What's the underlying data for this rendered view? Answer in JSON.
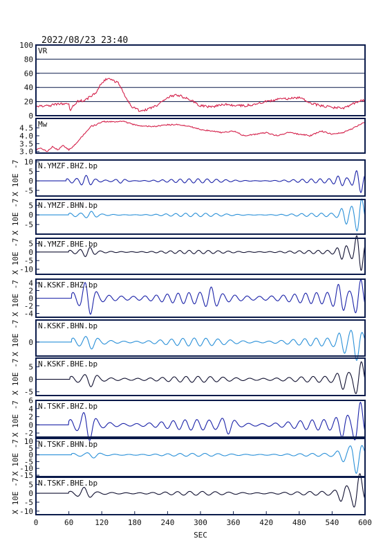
{
  "header": {
    "timestamp": "2022/08/23 23:40"
  },
  "x_axis": {
    "label": "SEC",
    "range": [
      0,
      600
    ],
    "ticks": [
      0,
      60,
      120,
      180,
      240,
      300,
      360,
      420,
      480,
      540,
      600
    ]
  },
  "colors": {
    "frame": "#0a1a4a",
    "vr_mw": "#d4204a",
    "bhz": "#1a22a8",
    "bhn": "#2a90d8",
    "bhe": "#101030"
  },
  "chart_data": [
    {
      "type": "line",
      "name": "VR",
      "label": "VR",
      "ylim": [
        0,
        100
      ],
      "yticks": [
        0,
        20,
        40,
        60,
        80,
        100
      ],
      "grid": true,
      "color": "#d4204a",
      "x": [
        0,
        20,
        40,
        60,
        62,
        75,
        90,
        100,
        110,
        120,
        130,
        140,
        150,
        165,
        175,
        190,
        200,
        215,
        230,
        245,
        260,
        280,
        300,
        320,
        330,
        345,
        360,
        380,
        400,
        420,
        440,
        460,
        480,
        500,
        520,
        540,
        560,
        580,
        600
      ],
      "values": [
        13,
        14,
        16,
        18,
        8,
        20,
        22,
        28,
        32,
        47,
        52,
        50,
        46,
        25,
        12,
        7,
        8,
        12,
        20,
        28,
        29,
        23,
        14,
        12,
        14,
        16,
        15,
        14,
        16,
        20,
        23,
        24,
        26,
        18,
        14,
        12,
        10,
        18,
        22
      ]
    },
    {
      "type": "line",
      "name": "Mw",
      "label": "Mw",
      "ylim": [
        2.9,
        5.1
      ],
      "yticks": [
        3.0,
        3.5,
        4.0,
        4.5
      ],
      "grid": false,
      "color": "#d4204a",
      "x": [
        0,
        10,
        20,
        30,
        40,
        50,
        60,
        70,
        80,
        90,
        100,
        110,
        120,
        140,
        160,
        180,
        200,
        220,
        240,
        260,
        280,
        300,
        320,
        340,
        360,
        380,
        400,
        420,
        440,
        460,
        480,
        500,
        520,
        540,
        560,
        580,
        600
      ],
      "values": [
        3.1,
        3.2,
        3.0,
        3.3,
        3.1,
        3.4,
        3.1,
        3.4,
        3.8,
        4.2,
        4.6,
        4.7,
        4.9,
        4.9,
        4.9,
        4.7,
        4.6,
        4.6,
        4.7,
        4.7,
        4.6,
        4.4,
        4.3,
        4.2,
        4.3,
        4.0,
        4.1,
        4.2,
        4.0,
        4.2,
        4.1,
        4.0,
        4.3,
        4.1,
        4.2,
        4.5,
        4.9
      ]
    },
    {
      "type": "line",
      "name": "N.YMZF.BHZ.bp",
      "label": "N.YMZF.BHZ.bp",
      "ylim": [
        -8,
        11
      ],
      "yticks": [
        -5,
        0,
        5,
        10
      ],
      "color": "#1a22a8",
      "wave": {
        "onset": 55,
        "base": 0.6,
        "rise": 0.5,
        "period": 17,
        "peaks": [
          [
            92,
            2.0
          ],
          [
            155,
            1.0
          ],
          [
            555,
            1.8
          ],
          [
            590,
            6.0
          ]
        ]
      }
    },
    {
      "type": "line",
      "name": "N.YMZF.BHN.bp",
      "label": "N.YMZF.BHN.bp",
      "ylim": [
        -10,
        8
      ],
      "yticks": [
        -5,
        0,
        5
      ],
      "color": "#2a90d8",
      "wave": {
        "onset": 60,
        "base": 0.5,
        "rise": 0.4,
        "period": 19,
        "peaks": [
          [
            100,
            1.2
          ],
          [
            565,
            4.0
          ],
          [
            590,
            9.0
          ]
        ]
      }
    },
    {
      "type": "line",
      "name": "N.YMZF.BHE.bp",
      "label": "N.YMZF.BHE.bp",
      "ylim": [
        -13,
        8
      ],
      "yticks": [
        -10,
        -5,
        0,
        5
      ],
      "color": "#101030",
      "wave": {
        "onset": 60,
        "base": 0.6,
        "rise": 0.4,
        "period": 18,
        "peaks": [
          [
            95,
            2.2
          ],
          [
            560,
            3.5
          ],
          [
            590,
            11.0
          ]
        ]
      }
    },
    {
      "type": "line",
      "name": "N.KSKF.BHZ.bp",
      "label": "N.KSKF.BHZ.bp",
      "ylim": [
        -5,
        5
      ],
      "yticks": [
        -4,
        -2,
        0,
        2,
        4
      ],
      "color": "#1a22a8",
      "wave": {
        "onset": 65,
        "base": 1.0,
        "rise": 0.5,
        "period": 21,
        "peaks": [
          [
            95,
            3.5
          ],
          [
            320,
            1.6
          ],
          [
            555,
            2.5
          ],
          [
            590,
            4.2
          ]
        ]
      }
    },
    {
      "type": "line",
      "name": "N.KSKF.BHN.bp",
      "label": "N.KSKF.BHN.bp",
      "ylim": [
        -3.5,
        5.5
      ],
      "yticks": [
        0
      ],
      "color": "#2a90d8",
      "wave": {
        "onset": 65,
        "base": 0.6,
        "rise": 0.4,
        "period": 22,
        "peaks": [
          [
            100,
            1.0
          ],
          [
            560,
            2.0
          ],
          [
            585,
            4.0
          ]
        ]
      }
    },
    {
      "type": "line",
      "name": "N.KSKF.BHE.bp",
      "label": "N.KSKF.BHE.bp",
      "ylim": [
        -6.5,
        8.5
      ],
      "yticks": [
        -5,
        0,
        5
      ],
      "color": "#101030",
      "wave": {
        "onset": 62,
        "base": 0.8,
        "rise": 0.4,
        "period": 23,
        "peaks": [
          [
            100,
            2.0
          ],
          [
            560,
            3.0
          ],
          [
            590,
            7.0
          ]
        ]
      }
    },
    {
      "type": "line",
      "name": "N.TSKF.BHZ.bp",
      "label": "N.TSKF.BHZ.bp",
      "ylim": [
        -3,
        6
      ],
      "yticks": [
        -2,
        0,
        2,
        4,
        6
      ],
      "color": "#1a22a8",
      "wave": {
        "onset": 60,
        "base": 0.8,
        "rise": 0.5,
        "period": 23,
        "peaks": [
          [
            95,
            3.0
          ],
          [
            350,
            1.5
          ],
          [
            560,
            2.0
          ],
          [
            590,
            5.0
          ]
        ]
      }
    },
    {
      "type": "line",
      "name": "N.TSKF.BHN.bp",
      "label": "N.TSKF.BHN.bp",
      "ylim": [
        -16,
        12
      ],
      "yticks": [
        -15,
        -10,
        -5,
        0,
        5,
        10
      ],
      "color": "#2a90d8",
      "wave": {
        "onset": 65,
        "base": 0.7,
        "rise": 0.4,
        "period": 24,
        "peaks": [
          [
            105,
            1.5
          ],
          [
            560,
            4.0
          ],
          [
            585,
            13.0
          ]
        ]
      }
    },
    {
      "type": "line",
      "name": "N.TSKF.BHE.bp",
      "label": "N.TSKF.BHE.bp",
      "ylim": [
        -12,
        9
      ],
      "yticks": [
        -10,
        -5,
        0,
        5
      ],
      "color": "#101030",
      "wave": {
        "onset": 60,
        "base": 0.7,
        "rise": 0.4,
        "period": 24,
        "peaks": [
          [
            90,
            2.5
          ],
          [
            560,
            4.0
          ],
          [
            588,
            11.0
          ]
        ]
      }
    }
  ],
  "unit_labels": [
    "X 10E -7",
    "X 10E -7",
    "X 10E -7",
    "X 10E -7",
    "X 10E -7",
    "X 10E -7",
    "X 10E -7",
    "X 10E -7",
    "X 10E -7"
  ]
}
